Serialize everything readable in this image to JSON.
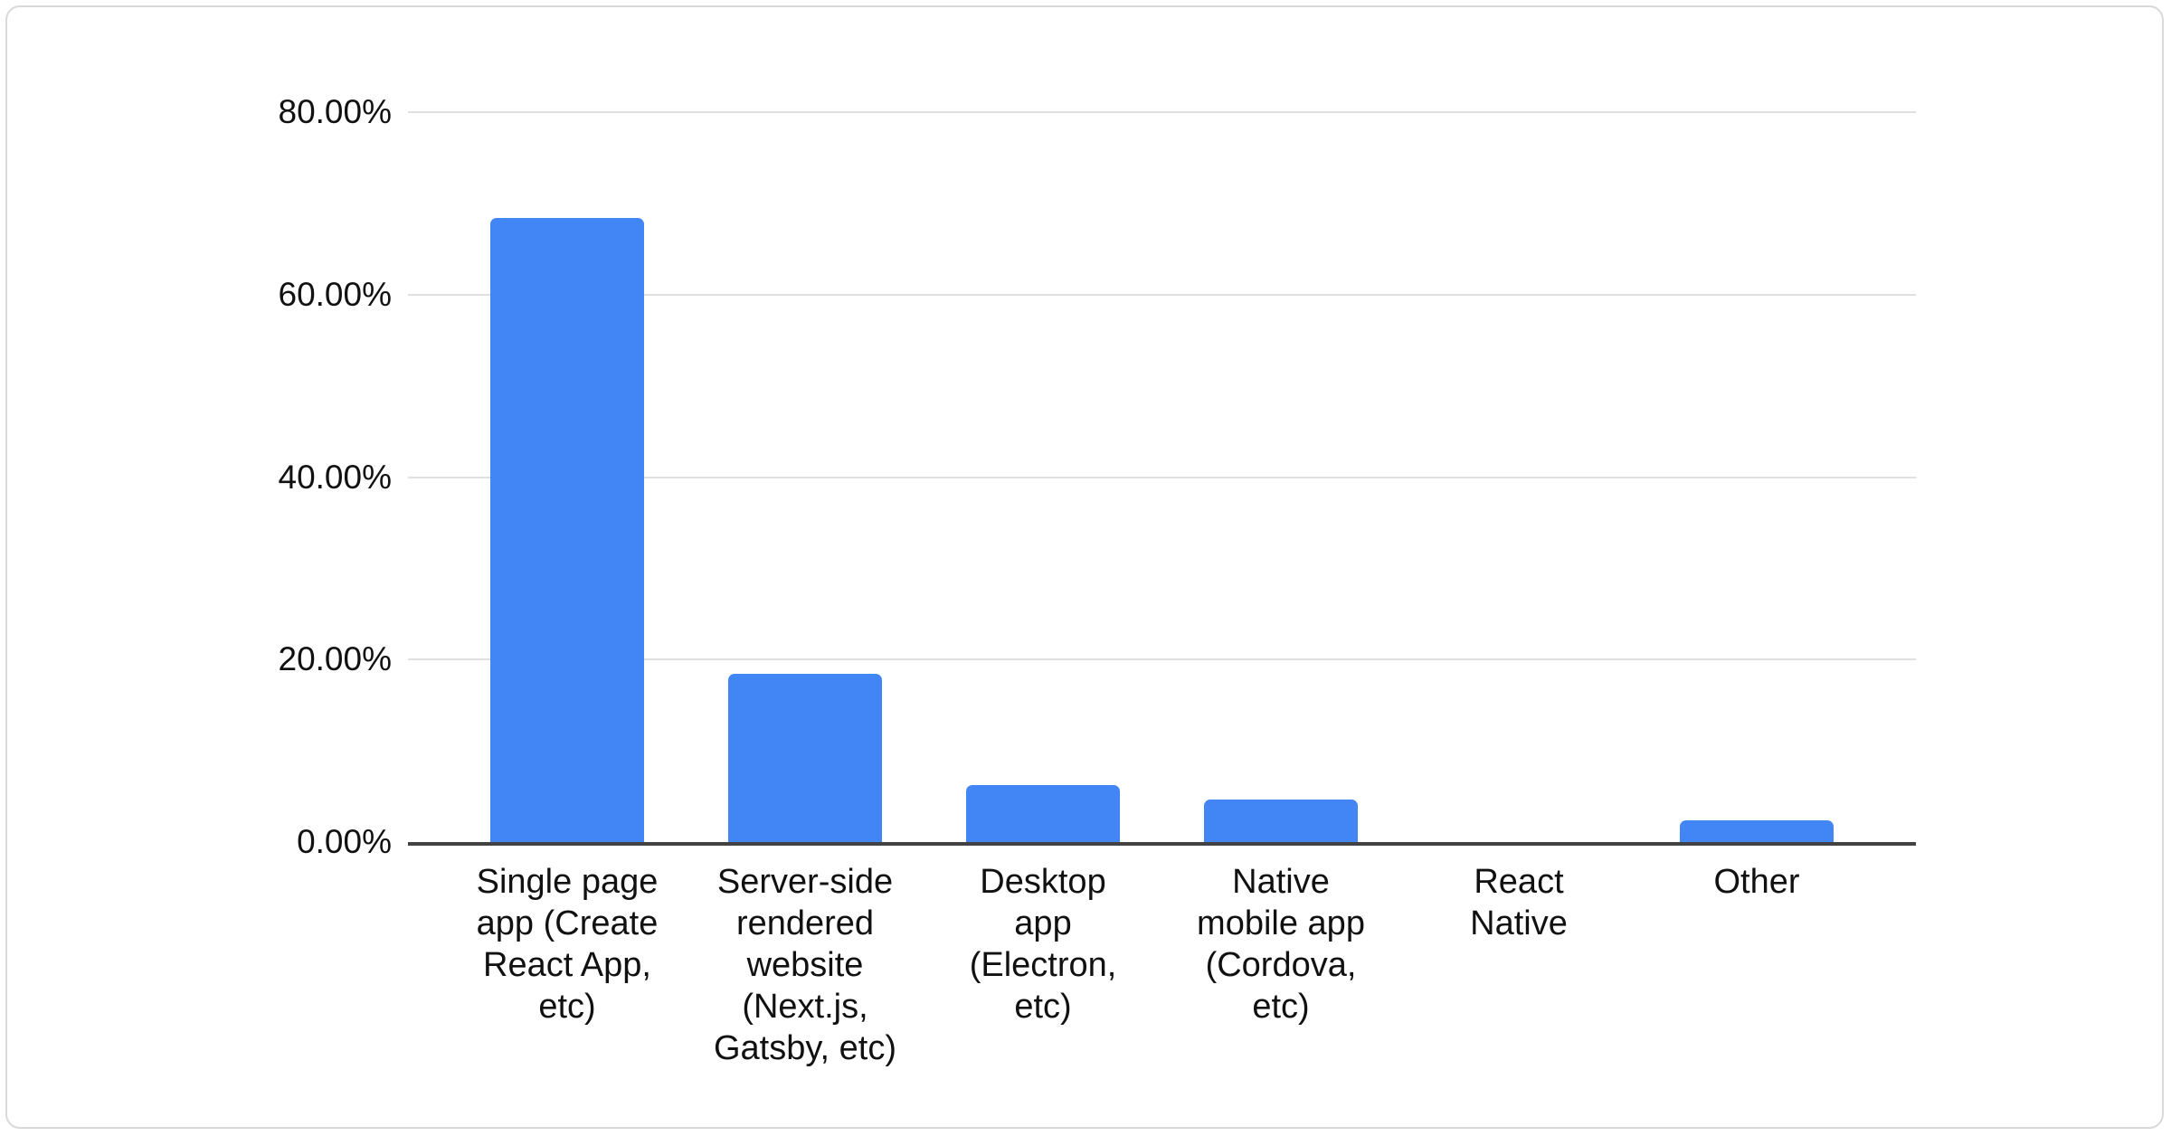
{
  "chart_data": {
    "type": "bar",
    "title": "",
    "xlabel": "",
    "ylabel": "",
    "ylim": [
      0,
      80
    ],
    "grid": true,
    "legend": "none",
    "categories": [
      "Single page app (Create React App, etc)",
      "Server-side rendered website (Next.js, Gatsby, etc)",
      "Desktop app (Electron, etc)",
      "Native mobile app (Cordova, etc)",
      "React Native",
      "Other"
    ],
    "category_lines": [
      [
        "Single page",
        "app (Create",
        "React App,",
        "etc)"
      ],
      [
        "Server-side",
        "rendered",
        "website",
        "(Next.js,",
        "Gatsby, etc)"
      ],
      [
        "Desktop",
        "app",
        "(Electron,",
        "etc)"
      ],
      [
        "Native",
        "mobile app",
        "(Cordova,",
        "etc)"
      ],
      [
        "React",
        "Native"
      ],
      [
        "Other"
      ]
    ],
    "values": [
      68.4,
      18.4,
      6.2,
      4.7,
      0,
      2.4
    ],
    "y_ticks": [
      {
        "value": 80,
        "label": "80.00%"
      },
      {
        "value": 60,
        "label": "60.00%"
      },
      {
        "value": 40,
        "label": "40.00%"
      },
      {
        "value": 20,
        "label": "20.00%"
      },
      {
        "value": 0,
        "label": "0.00%"
      }
    ]
  },
  "colors": {
    "bar": "#4285f4",
    "gridline": "#e0e0e0",
    "axis_line": "#424242",
    "text": "#111111",
    "card_border": "#d9d9d9",
    "background": "#ffffff"
  }
}
